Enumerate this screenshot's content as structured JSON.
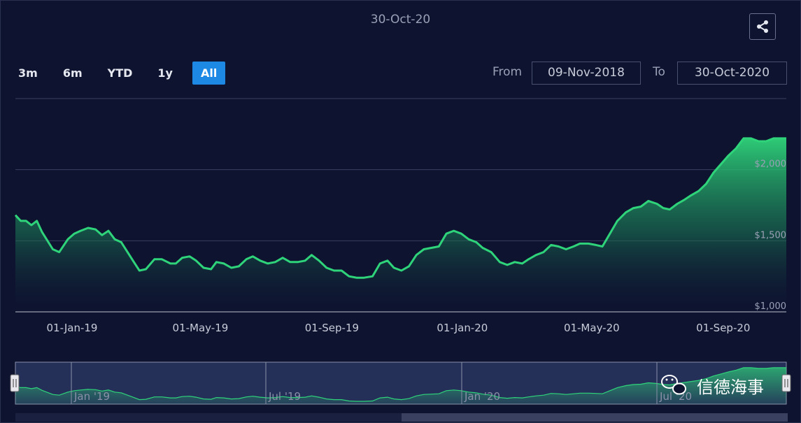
{
  "header": {
    "current_date": "30-Oct-20"
  },
  "toolbar": {
    "ranges": [
      "3m",
      "6m",
      "YTD",
      "1y",
      "All"
    ],
    "active_range": "All",
    "from_label": "From",
    "from_value": "09-Nov-2018",
    "to_label": "To",
    "to_value": "30-Oct-2020"
  },
  "navigator": {
    "labels": [
      "Jan '19",
      "Jul '19",
      "Jan '20",
      "Jul '20"
    ]
  },
  "watermark": {
    "text": "信德海事"
  },
  "colors": {
    "background": "#0e1330",
    "line": "#2fd47a",
    "accent": "#1e88e5"
  },
  "chart_data": {
    "type": "area",
    "title": "",
    "xlabel": "",
    "ylabel": "",
    "ylim": [
      1000,
      2500
    ],
    "y_ticks": [
      1000,
      1500,
      2000
    ],
    "y_tick_labels": [
      "$1,000",
      "$1,500",
      "$2,000"
    ],
    "x_tick_labels": [
      "01-Jan-19",
      "01-May-19",
      "01-Sep-19",
      "01-Jan-20",
      "01-May-20",
      "01-Sep-20"
    ],
    "x_tick_dates": [
      "2019-01-01",
      "2019-05-01",
      "2019-09-01",
      "2020-01-01",
      "2020-05-01",
      "2020-09-01"
    ],
    "grid": true,
    "series": [
      {
        "x": [
          "2018-11-09",
          "2018-11-14",
          "2018-11-19",
          "2018-11-24",
          "2018-11-29",
          "2018-12-04",
          "2018-12-14",
          "2018-12-20",
          "2018-12-28",
          "2019-01-03",
          "2019-01-09",
          "2019-01-16",
          "2019-01-23",
          "2019-01-29",
          "2019-02-04",
          "2019-02-10",
          "2019-02-16",
          "2019-02-27",
          "2019-03-05",
          "2019-03-11",
          "2019-03-19",
          "2019-03-26",
          "2019-04-03",
          "2019-04-08",
          "2019-04-14",
          "2019-04-21",
          "2019-04-27",
          "2019-05-04",
          "2019-05-11",
          "2019-05-16",
          "2019-05-23",
          "2019-05-30",
          "2019-06-06",
          "2019-06-13",
          "2019-06-19",
          "2019-06-26",
          "2019-07-03",
          "2019-07-10",
          "2019-07-17",
          "2019-07-24",
          "2019-07-31",
          "2019-08-07",
          "2019-08-13",
          "2019-08-20",
          "2019-08-27",
          "2019-09-03",
          "2019-09-10",
          "2019-09-17",
          "2019-09-24",
          "2019-10-01",
          "2019-10-09",
          "2019-10-16",
          "2019-10-23",
          "2019-10-29",
          "2019-11-05",
          "2019-11-12",
          "2019-11-19",
          "2019-11-26",
          "2019-12-03",
          "2019-12-10",
          "2019-12-17",
          "2019-12-24",
          "2019-12-31",
          "2020-01-07",
          "2020-01-14",
          "2020-01-20",
          "2020-01-28",
          "2020-02-05",
          "2020-02-12",
          "2020-02-19",
          "2020-02-26",
          "2020-03-03",
          "2020-03-10",
          "2020-03-17",
          "2020-03-24",
          "2020-03-31",
          "2020-04-07",
          "2020-04-14",
          "2020-04-20",
          "2020-04-28",
          "2020-05-05",
          "2020-05-11",
          "2020-05-18",
          "2020-05-25",
          "2020-06-02",
          "2020-06-09",
          "2020-06-16",
          "2020-06-23",
          "2020-07-01",
          "2020-07-07",
          "2020-07-13",
          "2020-07-20",
          "2020-07-27",
          "2020-08-02",
          "2020-08-09",
          "2020-08-16",
          "2020-08-23",
          "2020-08-30",
          "2020-09-06",
          "2020-09-13",
          "2020-09-20",
          "2020-09-27",
          "2020-10-04",
          "2020-10-11",
          "2020-10-18",
          "2020-10-24",
          "2020-10-30"
        ],
        "y": [
          1680,
          1640,
          1640,
          1610,
          1640,
          1560,
          1440,
          1420,
          1510,
          1550,
          1570,
          1590,
          1580,
          1540,
          1570,
          1510,
          1490,
          1360,
          1290,
          1300,
          1370,
          1370,
          1340,
          1340,
          1380,
          1390,
          1360,
          1310,
          1300,
          1350,
          1340,
          1310,
          1320,
          1370,
          1390,
          1360,
          1340,
          1350,
          1380,
          1350,
          1350,
          1360,
          1400,
          1360,
          1310,
          1290,
          1290,
          1250,
          1240,
          1240,
          1250,
          1340,
          1360,
          1310,
          1290,
          1320,
          1400,
          1440,
          1450,
          1460,
          1550,
          1570,
          1550,
          1510,
          1490,
          1450,
          1420,
          1350,
          1330,
          1350,
          1340,
          1370,
          1400,
          1420,
          1470,
          1460,
          1440,
          1460,
          1480,
          1480,
          1470,
          1460,
          1550,
          1640,
          1700,
          1730,
          1740,
          1780,
          1760,
          1730,
          1720,
          1760,
          1790,
          1820,
          1850,
          1900,
          1980,
          2040,
          2100,
          2150,
          2220,
          2220,
          2200,
          2200,
          2220,
          2220,
          2220
        ]
      }
    ]
  }
}
